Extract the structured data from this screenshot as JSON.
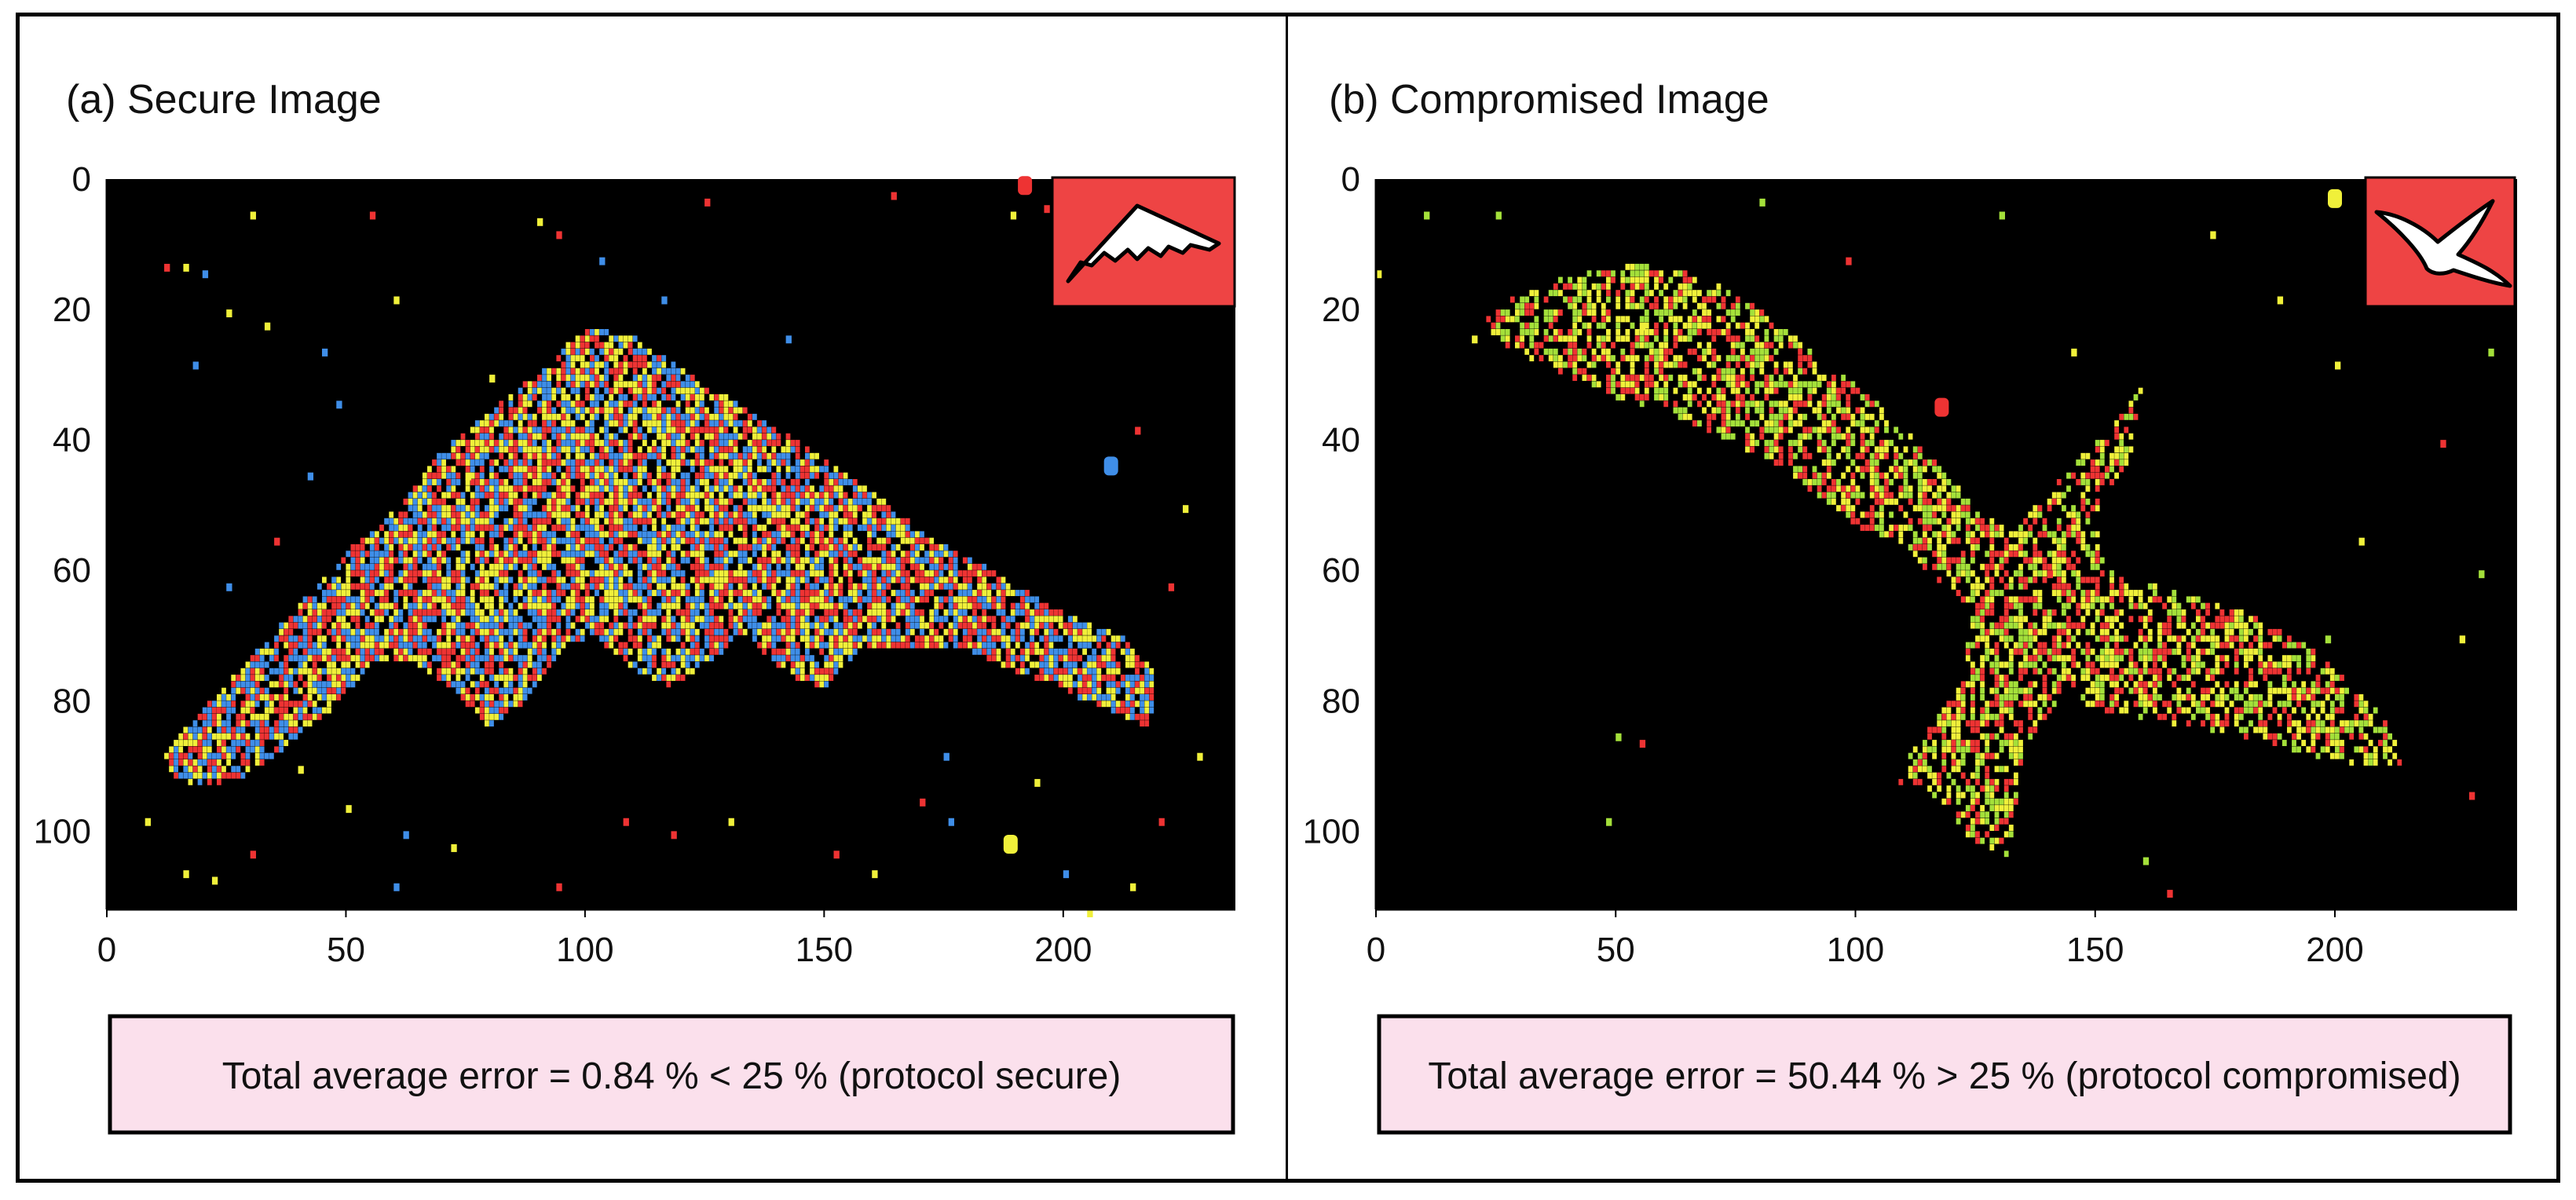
{
  "panels": [
    {
      "title": "(a) Secure Image",
      "error_text": "Total average error = 0.84 % < 25 % (protocol secure)",
      "inset_icon": "stealth-bomber-icon",
      "inset_color": "#ee4444",
      "result_box_color": "#fbe0ec",
      "point_colors": [
        "#f0f03a",
        "#3f8ee8",
        "#ee3333"
      ]
    },
    {
      "title": "(b) Compromised Image",
      "error_text": "Total average error = 50.44 % > 25 % (protocol compromised)",
      "inset_icon": "seagull-icon",
      "inset_color": "#ee4444",
      "result_box_color": "#fbe0ec",
      "point_colors": [
        "#f0f03a",
        "#a4e03a",
        "#ee3333"
      ]
    }
  ],
  "chart_data": [
    {
      "type": "scatter",
      "title": "(a) Secure Image",
      "xlabel": "",
      "ylabel": "",
      "xlim": [
        0,
        236
      ],
      "ylim": [
        0,
        112
      ],
      "y_inverted": true,
      "x_ticks": [
        0,
        50,
        100,
        150,
        200
      ],
      "y_ticks": [
        0,
        20,
        40,
        60,
        80,
        100
      ],
      "background": "#000000",
      "grid": false,
      "shape_polygon": [
        [
          12,
          88
        ],
        [
          22,
          80
        ],
        [
          32,
          72
        ],
        [
          42,
          64
        ],
        [
          52,
          56
        ],
        [
          62,
          50
        ],
        [
          70,
          42
        ],
        [
          80,
          36
        ],
        [
          90,
          30
        ],
        [
          100,
          23
        ],
        [
          110,
          24
        ],
        [
          122,
          30
        ],
        [
          135,
          36
        ],
        [
          148,
          42
        ],
        [
          160,
          48
        ],
        [
          172,
          55
        ],
        [
          185,
          60
        ],
        [
          198,
          66
        ],
        [
          212,
          70
        ],
        [
          220,
          76
        ],
        [
          218,
          84
        ],
        [
          205,
          80
        ],
        [
          192,
          76
        ],
        [
          180,
          72
        ],
        [
          168,
          72
        ],
        [
          158,
          72
        ],
        [
          150,
          78
        ],
        [
          142,
          76
        ],
        [
          134,
          70
        ],
        [
          126,
          74
        ],
        [
          118,
          78
        ],
        [
          110,
          75
        ],
        [
          102,
          70
        ],
        [
          96,
          72
        ],
        [
          88,
          80
        ],
        [
          80,
          84
        ],
        [
          72,
          78
        ],
        [
          64,
          74
        ],
        [
          56,
          74
        ],
        [
          46,
          82
        ],
        [
          36,
          88
        ],
        [
          28,
          92
        ],
        [
          20,
          93
        ],
        [
          14,
          92
        ]
      ],
      "colors": [
        "#f0f03a",
        "#3f8ee8",
        "#ee3333"
      ],
      "scattered_points": [
        [
          8,
          98
        ],
        [
          12,
          13
        ],
        [
          16,
          13
        ],
        [
          18,
          28
        ],
        [
          20,
          14
        ],
        [
          25,
          20
        ],
        [
          30,
          5
        ],
        [
          33,
          22
        ],
        [
          45,
          26
        ],
        [
          48,
          34
        ],
        [
          55,
          5
        ],
        [
          60,
          18
        ],
        [
          75,
          45
        ],
        [
          80,
          30
        ],
        [
          90,
          6
        ],
        [
          94,
          8
        ],
        [
          103,
          12
        ],
        [
          116,
          18
        ],
        [
          125,
          3
        ],
        [
          142,
          24
        ],
        [
          152,
          103
        ],
        [
          164,
          2
        ],
        [
          175,
          88
        ],
        [
          176,
          98
        ],
        [
          189,
          5
        ],
        [
          194,
          92
        ],
        [
          196,
          4
        ],
        [
          200,
          106
        ],
        [
          205,
          112
        ],
        [
          214,
          108
        ],
        [
          215,
          38
        ],
        [
          220,
          98
        ],
        [
          222,
          62
        ],
        [
          225,
          50
        ],
        [
          228,
          88
        ],
        [
          16,
          106
        ],
        [
          22,
          107
        ],
        [
          30,
          103
        ],
        [
          40,
          90
        ],
        [
          50,
          96
        ],
        [
          62,
          100
        ],
        [
          72,
          102
        ],
        [
          94,
          108
        ],
        [
          108,
          98
        ],
        [
          118,
          100
        ],
        [
          130,
          98
        ],
        [
          160,
          106
        ],
        [
          170,
          95
        ],
        [
          25,
          62
        ],
        [
          35,
          55
        ],
        [
          42,
          45
        ],
        [
          60,
          108
        ]
      ],
      "large_markers": [
        {
          "x": 192,
          "y": 1,
          "color": "#ee3333"
        },
        {
          "x": 210,
          "y": 44,
          "color": "#3f8ee8"
        },
        {
          "x": 189,
          "y": 102,
          "color": "#f0f03a"
        }
      ]
    },
    {
      "type": "scatter",
      "title": "(b) Compromised Image",
      "xlabel": "",
      "ylabel": "",
      "xlim": [
        0,
        238
      ],
      "ylim": [
        0,
        112
      ],
      "y_inverted": true,
      "x_ticks": [
        0,
        50,
        100,
        150,
        200
      ],
      "y_ticks": [
        0,
        20,
        40,
        60,
        80,
        100
      ],
      "background": "#000000",
      "grid": false,
      "shape_polygon": [
        [
          28,
          18
        ],
        [
          40,
          15
        ],
        [
          55,
          13
        ],
        [
          68,
          15
        ],
        [
          80,
          20
        ],
        [
          92,
          27
        ],
        [
          104,
          34
        ],
        [
          115,
          42
        ],
        [
          125,
          50
        ],
        [
          133,
          54
        ],
        [
          143,
          46
        ],
        [
          153,
          38
        ],
        [
          160,
          32
        ],
        [
          158,
          42
        ],
        [
          150,
          52
        ],
        [
          152,
          60
        ],
        [
          165,
          63
        ],
        [
          180,
          66
        ],
        [
          195,
          72
        ],
        [
          210,
          82
        ],
        [
          215,
          90
        ],
        [
          202,
          90
        ],
        [
          185,
          86
        ],
        [
          170,
          84
        ],
        [
          155,
          82
        ],
        [
          142,
          80
        ],
        [
          135,
          88
        ],
        [
          132,
          104
        ],
        [
          124,
          101
        ],
        [
          118,
          96
        ],
        [
          108,
          92
        ],
        [
          115,
          85
        ],
        [
          123,
          76
        ],
        [
          124,
          66
        ],
        [
          112,
          58
        ],
        [
          98,
          52
        ],
        [
          84,
          44
        ],
        [
          68,
          38
        ],
        [
          52,
          34
        ],
        [
          40,
          30
        ],
        [
          28,
          26
        ],
        [
          22,
          22
        ]
      ],
      "colors": [
        "#f0f03a",
        "#a4e03a",
        "#ee3333"
      ],
      "scattered_points": [
        [
          0,
          14
        ],
        [
          10,
          5
        ],
        [
          25,
          5
        ],
        [
          55,
          22
        ],
        [
          48,
          98
        ],
        [
          50,
          85
        ],
        [
          55,
          86
        ],
        [
          80,
          3
        ],
        [
          98,
          12
        ],
        [
          130,
          5
        ],
        [
          145,
          26
        ],
        [
          160,
          104
        ],
        [
          165,
          109
        ],
        [
          174,
          8
        ],
        [
          188,
          18
        ],
        [
          200,
          28
        ],
        [
          205,
          55
        ],
        [
          222,
          40
        ],
        [
          226,
          70
        ],
        [
          230,
          60
        ],
        [
          232,
          26
        ],
        [
          228,
          94
        ],
        [
          198,
          70
        ],
        [
          140,
          60
        ],
        [
          20,
          24
        ]
      ],
      "large_markers": [
        {
          "x": 118,
          "y": 35,
          "color": "#ee3333"
        },
        {
          "x": 200,
          "y": 3,
          "color": "#f0f03a"
        }
      ]
    }
  ]
}
